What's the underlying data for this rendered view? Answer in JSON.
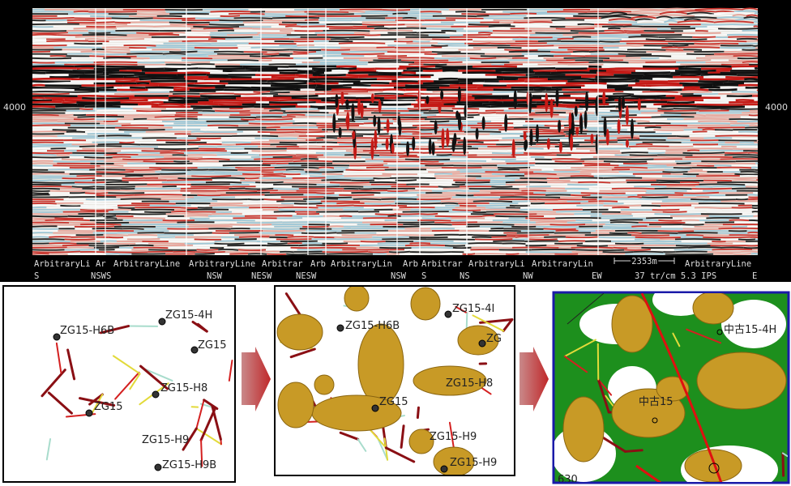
{
  "seismic": {
    "depth_labels": [
      "4000",
      "4000"
    ],
    "line_labels": [
      "ArbitraryLi",
      "Ar",
      "ArbitraryLine",
      "ArbitraryLine",
      "Arbitrar",
      "Arb",
      "ArbitraryLin",
      "Arb",
      "Arbitrar",
      "ArbitraryLi",
      "ArbitraryLin",
      "ArbitraryLine"
    ],
    "direction_labels": [
      "S",
      "NSWS",
      "NSW",
      "NESW",
      "NESW",
      "NSW",
      "S",
      "NS",
      "NW",
      "EW",
      "E"
    ],
    "scale": "2353m",
    "display": "37 tr/cm 5.3 IPS"
  },
  "panels": [
    {
      "wells": [
        "ZG15-4H",
        "ZG15-H6B",
        "ZG15",
        "ZG15-H8",
        "ZG15",
        "ZG15-H9",
        "ZG15-H9B"
      ]
    },
    {
      "wells": [
        "ZG15-4I",
        "ZG15-H6B",
        "ZG",
        "ZG15-H8",
        "ZG15",
        "ZG15-H9",
        "ZG15-H9"
      ]
    },
    {
      "wells": [
        "中古15-4H",
        "中古15",
        "630"
      ]
    }
  ]
}
